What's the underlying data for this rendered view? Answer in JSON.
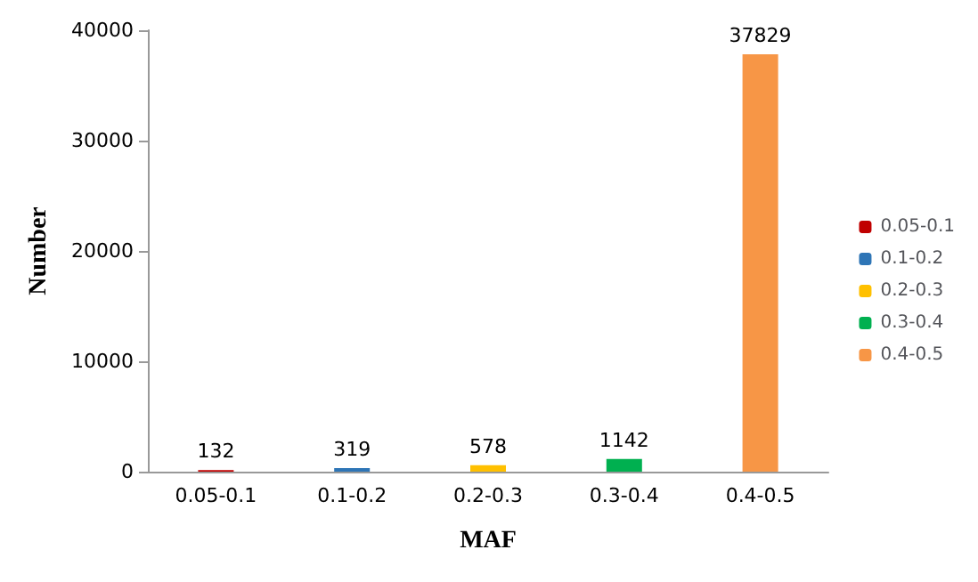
{
  "chart_data": {
    "type": "bar",
    "xlabel": "MAF",
    "ylabel": "Number",
    "categories": [
      "0.05-0.1",
      "0.1-0.2",
      "0.2-0.3",
      "0.3-0.4",
      "0.4-0.5"
    ],
    "series": [
      {
        "name": "0.05-0.1",
        "color": "#c00000",
        "values": [
          132,
          null,
          null,
          null,
          null
        ]
      },
      {
        "name": "0.1-0.2",
        "color": "#2e75b6",
        "values": [
          null,
          319,
          null,
          null,
          null
        ]
      },
      {
        "name": "0.2-0.3",
        "color": "#ffc000",
        "values": [
          null,
          null,
          578,
          null,
          null
        ]
      },
      {
        "name": "0.3-0.4",
        "color": "#00b050",
        "values": [
          null,
          null,
          null,
          1142,
          null
        ]
      },
      {
        "name": "0.4-0.5",
        "color": "#f79646",
        "values": [
          null,
          null,
          null,
          null,
          37829
        ]
      }
    ],
    "ylim": [
      0,
      40000
    ],
    "yticks": [
      0,
      10000,
      20000,
      30000,
      40000
    ],
    "grid": false,
    "legend": "right",
    "data_labels": true
  }
}
